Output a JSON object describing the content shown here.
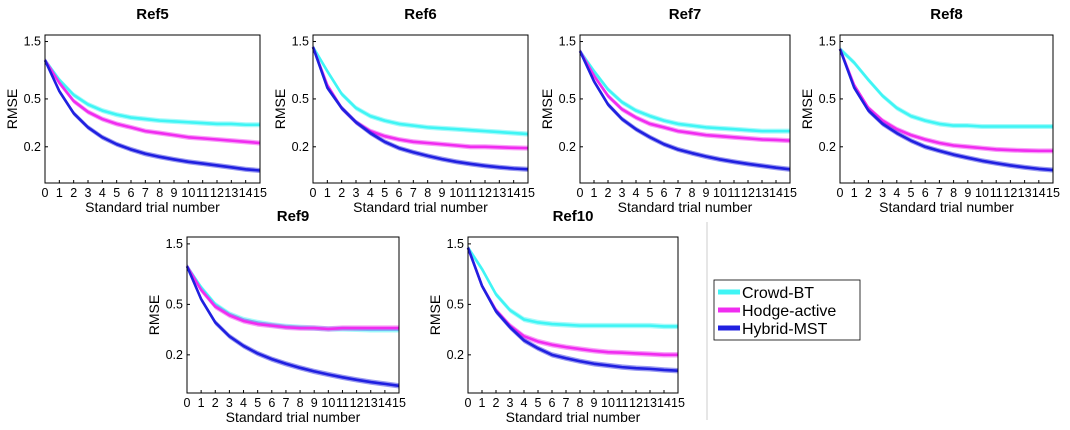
{
  "legend": {
    "placement": "right",
    "entries": [
      {
        "name": "Crowd-BT",
        "color": "#3ff5f5"
      },
      {
        "name": "Hodge-active",
        "color": "#f02cf0"
      },
      {
        "name": "Hybrid-MST",
        "color": "#2020e0"
      }
    ]
  },
  "chart_data": [
    {
      "type": "line",
      "title": "Ref5",
      "xlabel": "Standard trial number",
      "ylabel": "RMSE",
      "x": [
        0,
        1,
        2,
        3,
        4,
        5,
        6,
        7,
        8,
        9,
        10,
        11,
        12,
        13,
        14,
        15
      ],
      "xlim": [
        0,
        15
      ],
      "ylim": [
        0.1,
        1.7
      ],
      "yscale": "log",
      "yticks": [
        0.2,
        0.5,
        1.5
      ],
      "ytick_labels": [
        "0.2",
        "0.5",
        "1.5"
      ],
      "xtick_labels": [
        "0",
        "1",
        "2",
        "3",
        "4",
        "5",
        "6",
        "7",
        "8",
        "9",
        "10",
        "11",
        "12",
        "13",
        "14",
        "15"
      ],
      "series": [
        {
          "name": "Crowd-BT",
          "values": [
            1.05,
            0.72,
            0.54,
            0.45,
            0.4,
            0.37,
            0.35,
            0.34,
            0.33,
            0.325,
            0.32,
            0.315,
            0.31,
            0.31,
            0.305,
            0.305
          ]
        },
        {
          "name": "Hodge-active",
          "values": [
            1.05,
            0.68,
            0.48,
            0.39,
            0.34,
            0.31,
            0.29,
            0.27,
            0.26,
            0.25,
            0.24,
            0.235,
            0.23,
            0.225,
            0.22,
            0.215
          ]
        },
        {
          "name": "Hybrid-MST",
          "values": [
            1.05,
            0.58,
            0.38,
            0.29,
            0.24,
            0.21,
            0.19,
            0.175,
            0.165,
            0.157,
            0.15,
            0.145,
            0.14,
            0.135,
            0.13,
            0.127
          ]
        }
      ]
    },
    {
      "type": "line",
      "title": "Ref6",
      "xlabel": "Standard trial number",
      "ylabel": "RMSE",
      "x": [
        0,
        1,
        2,
        3,
        4,
        5,
        6,
        7,
        8,
        9,
        10,
        11,
        12,
        13,
        14,
        15
      ],
      "xlim": [
        0,
        15
      ],
      "ylim": [
        0.1,
        1.7
      ],
      "yscale": "log",
      "yticks": [
        0.2,
        0.5,
        1.5
      ],
      "ytick_labels": [
        "0.2",
        "0.5",
        "1.5"
      ],
      "xtick_labels": [
        "0",
        "1",
        "2",
        "3",
        "4",
        "5",
        "6",
        "7",
        "8",
        "9",
        "10",
        "11",
        "12",
        "13",
        "14",
        "15"
      ],
      "series": [
        {
          "name": "Crowd-BT",
          "values": [
            1.35,
            0.85,
            0.55,
            0.42,
            0.36,
            0.33,
            0.31,
            0.3,
            0.29,
            0.285,
            0.28,
            0.275,
            0.27,
            0.265,
            0.26,
            0.255
          ]
        },
        {
          "name": "Hodge-active",
          "values": [
            1.35,
            0.65,
            0.42,
            0.32,
            0.27,
            0.245,
            0.23,
            0.22,
            0.215,
            0.21,
            0.205,
            0.2,
            0.2,
            0.198,
            0.196,
            0.195
          ]
        },
        {
          "name": "Hybrid-MST",
          "values": [
            1.35,
            0.62,
            0.42,
            0.32,
            0.26,
            0.22,
            0.195,
            0.18,
            0.168,
            0.158,
            0.15,
            0.144,
            0.139,
            0.135,
            0.132,
            0.13
          ]
        }
      ]
    },
    {
      "type": "line",
      "title": "Ref7",
      "xlabel": "Standard trial number",
      "ylabel": "RMSE",
      "x": [
        0,
        1,
        2,
        3,
        4,
        5,
        6,
        7,
        8,
        9,
        10,
        11,
        12,
        13,
        14,
        15
      ],
      "xlim": [
        0,
        15
      ],
      "ylim": [
        0.1,
        1.7
      ],
      "yscale": "log",
      "yticks": [
        0.2,
        0.5,
        1.5
      ],
      "ytick_labels": [
        "0.2",
        "0.5",
        "1.5"
      ],
      "xtick_labels": [
        "0",
        "1",
        "2",
        "3",
        "4",
        "5",
        "6",
        "7",
        "8",
        "9",
        "10",
        "11",
        "12",
        "13",
        "14",
        "15"
      ],
      "series": [
        {
          "name": "Crowd-BT",
          "values": [
            1.25,
            0.85,
            0.6,
            0.47,
            0.4,
            0.36,
            0.33,
            0.31,
            0.3,
            0.29,
            0.285,
            0.28,
            0.275,
            0.27,
            0.27,
            0.27
          ]
        },
        {
          "name": "Hodge-active",
          "values": [
            1.25,
            0.78,
            0.53,
            0.41,
            0.35,
            0.31,
            0.29,
            0.27,
            0.26,
            0.25,
            0.245,
            0.24,
            0.235,
            0.23,
            0.228,
            0.225
          ]
        },
        {
          "name": "Hybrid-MST",
          "values": [
            1.25,
            0.7,
            0.45,
            0.34,
            0.28,
            0.24,
            0.21,
            0.19,
            0.177,
            0.166,
            0.157,
            0.15,
            0.144,
            0.139,
            0.134,
            0.13
          ]
        }
      ]
    },
    {
      "type": "line",
      "title": "Ref8",
      "xlabel": "Standard trial number",
      "ylabel": "RMSE",
      "x": [
        0,
        1,
        2,
        3,
        4,
        5,
        6,
        7,
        8,
        9,
        10,
        11,
        12,
        13,
        14,
        15
      ],
      "xlim": [
        0,
        15
      ],
      "ylim": [
        0.1,
        1.7
      ],
      "yscale": "log",
      "yticks": [
        0.2,
        0.5,
        1.5
      ],
      "ytick_labels": [
        "0.2",
        "0.5",
        "1.5"
      ],
      "xtick_labels": [
        "0",
        "1",
        "2",
        "3",
        "4",
        "5",
        "6",
        "7",
        "8",
        "9",
        "10",
        "11",
        "12",
        "13",
        "14",
        "15"
      ],
      "series": [
        {
          "name": "Crowd-BT",
          "values": [
            1.3,
            1.0,
            0.72,
            0.53,
            0.42,
            0.36,
            0.33,
            0.31,
            0.3,
            0.3,
            0.295,
            0.295,
            0.295,
            0.295,
            0.295,
            0.295
          ]
        },
        {
          "name": "Hodge-active",
          "values": [
            1.3,
            0.65,
            0.42,
            0.33,
            0.28,
            0.25,
            0.23,
            0.215,
            0.205,
            0.2,
            0.195,
            0.19,
            0.188,
            0.186,
            0.185,
            0.185
          ]
        },
        {
          "name": "Hybrid-MST",
          "values": [
            1.3,
            0.62,
            0.4,
            0.31,
            0.26,
            0.225,
            0.2,
            0.185,
            0.172,
            0.162,
            0.153,
            0.146,
            0.14,
            0.135,
            0.131,
            0.128
          ]
        }
      ]
    },
    {
      "type": "line",
      "title": "Ref9",
      "xlabel": "Standard trial number",
      "ylabel": "RMSE",
      "x": [
        0,
        1,
        2,
        3,
        4,
        5,
        6,
        7,
        8,
        9,
        10,
        11,
        12,
        13,
        14,
        15
      ],
      "xlim": [
        0,
        15
      ],
      "ylim": [
        0.1,
        1.7
      ],
      "yscale": "log",
      "yticks": [
        0.2,
        0.5,
        1.5
      ],
      "ytick_labels": [
        "0.2",
        "0.5",
        "1.5"
      ],
      "xtick_labels": [
        "0",
        "1",
        "2",
        "3",
        "4",
        "5",
        "6",
        "7",
        "8",
        "9",
        "10",
        "11",
        "12",
        "13",
        "14",
        "15"
      ],
      "series": [
        {
          "name": "Crowd-BT",
          "values": [
            1.0,
            0.68,
            0.5,
            0.42,
            0.38,
            0.36,
            0.345,
            0.335,
            0.33,
            0.325,
            0.32,
            0.32,
            0.318,
            0.315,
            0.315,
            0.315
          ]
        },
        {
          "name": "Hodge-active",
          "values": [
            1.0,
            0.65,
            0.48,
            0.41,
            0.37,
            0.35,
            0.34,
            0.33,
            0.325,
            0.325,
            0.32,
            0.325,
            0.325,
            0.325,
            0.325,
            0.325
          ]
        },
        {
          "name": "Hybrid-MST",
          "values": [
            1.0,
            0.55,
            0.36,
            0.28,
            0.235,
            0.205,
            0.185,
            0.17,
            0.158,
            0.148,
            0.14,
            0.133,
            0.127,
            0.122,
            0.118,
            0.114
          ]
        }
      ]
    },
    {
      "type": "line",
      "title": "Ref10",
      "xlabel": "Standard trial number",
      "ylabel": "RMSE",
      "x": [
        0,
        1,
        2,
        3,
        4,
        5,
        6,
        7,
        8,
        9,
        10,
        11,
        12,
        13,
        14,
        15
      ],
      "xlim": [
        0,
        15
      ],
      "ylim": [
        0.1,
        1.7
      ],
      "yscale": "log",
      "yticks": [
        0.2,
        0.5,
        1.5
      ],
      "ytick_labels": [
        "0.2",
        "0.5",
        "1.5"
      ],
      "xtick_labels": [
        "0",
        "1",
        "2",
        "3",
        "4",
        "5",
        "6",
        "7",
        "8",
        "9",
        "10",
        "11",
        "12",
        "13",
        "14",
        "15"
      ],
      "series": [
        {
          "name": "Crowd-BT",
          "values": [
            1.4,
            0.95,
            0.6,
            0.45,
            0.38,
            0.36,
            0.35,
            0.345,
            0.34,
            0.34,
            0.34,
            0.34,
            0.34,
            0.34,
            0.335,
            0.335
          ]
        },
        {
          "name": "Hodge-active",
          "values": [
            1.4,
            0.7,
            0.45,
            0.34,
            0.28,
            0.255,
            0.24,
            0.23,
            0.222,
            0.215,
            0.21,
            0.208,
            0.205,
            0.203,
            0.2,
            0.2
          ]
        },
        {
          "name": "Hybrid-MST",
          "values": [
            1.4,
            0.7,
            0.44,
            0.33,
            0.26,
            0.225,
            0.2,
            0.188,
            0.178,
            0.17,
            0.165,
            0.16,
            0.157,
            0.155,
            0.152,
            0.15
          ]
        }
      ]
    }
  ]
}
